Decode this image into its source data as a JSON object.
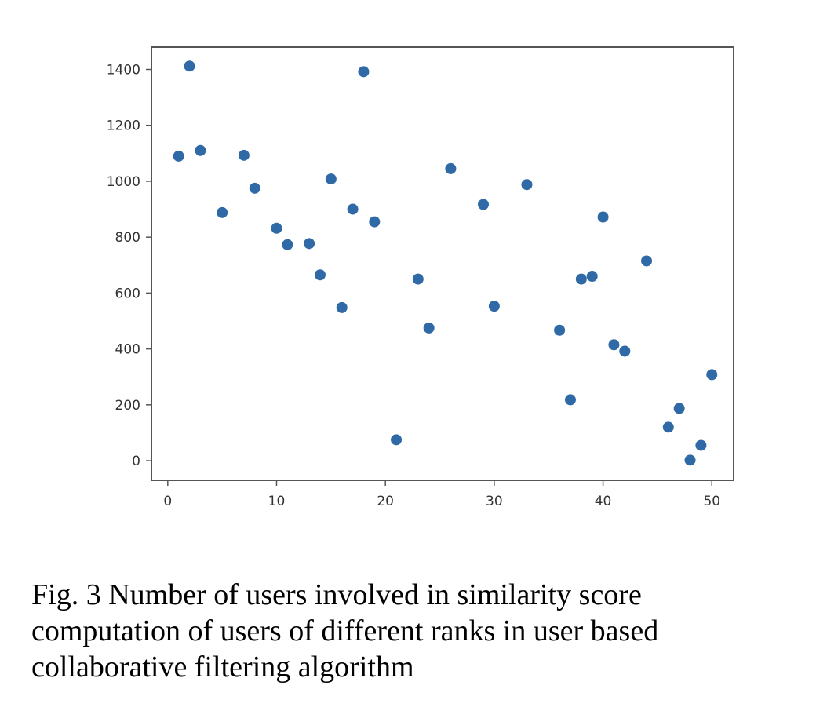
{
  "caption": "Fig. 3 Number of users involved in similarity score computation of users of different ranks in user based collaborative filtering algorithm",
  "chart_data": {
    "type": "scatter",
    "title": "",
    "xlabel": "",
    "ylabel": "",
    "xlim": [
      -1.5,
      52
    ],
    "ylim": [
      -70,
      1480
    ],
    "x_ticks": [
      0,
      10,
      20,
      30,
      40,
      50
    ],
    "y_ticks": [
      0,
      200,
      400,
      600,
      800,
      1000,
      1200,
      1400
    ],
    "grid": false,
    "legend": "none",
    "marker_color": "#2f6aa6",
    "points": [
      {
        "x": 1,
        "y": 1090
      },
      {
        "x": 2,
        "y": 1412
      },
      {
        "x": 3,
        "y": 1110
      },
      {
        "x": 5,
        "y": 888
      },
      {
        "x": 7,
        "y": 1093
      },
      {
        "x": 8,
        "y": 975
      },
      {
        "x": 10,
        "y": 832
      },
      {
        "x": 11,
        "y": 773
      },
      {
        "x": 13,
        "y": 777
      },
      {
        "x": 14,
        "y": 665
      },
      {
        "x": 15,
        "y": 1008
      },
      {
        "x": 16,
        "y": 548
      },
      {
        "x": 17,
        "y": 900
      },
      {
        "x": 18,
        "y": 1392
      },
      {
        "x": 19,
        "y": 855
      },
      {
        "x": 21,
        "y": 75
      },
      {
        "x": 23,
        "y": 650
      },
      {
        "x": 24,
        "y": 475
      },
      {
        "x": 26,
        "y": 1045
      },
      {
        "x": 29,
        "y": 917
      },
      {
        "x": 30,
        "y": 553
      },
      {
        "x": 33,
        "y": 988
      },
      {
        "x": 36,
        "y": 467
      },
      {
        "x": 37,
        "y": 218
      },
      {
        "x": 38,
        "y": 650
      },
      {
        "x": 39,
        "y": 660
      },
      {
        "x": 40,
        "y": 872
      },
      {
        "x": 41,
        "y": 415
      },
      {
        "x": 42,
        "y": 392
      },
      {
        "x": 44,
        "y": 715
      },
      {
        "x": 46,
        "y": 120
      },
      {
        "x": 47,
        "y": 187
      },
      {
        "x": 48,
        "y": 2
      },
      {
        "x": 49,
        "y": 55
      },
      {
        "x": 50,
        "y": 308
      }
    ]
  }
}
